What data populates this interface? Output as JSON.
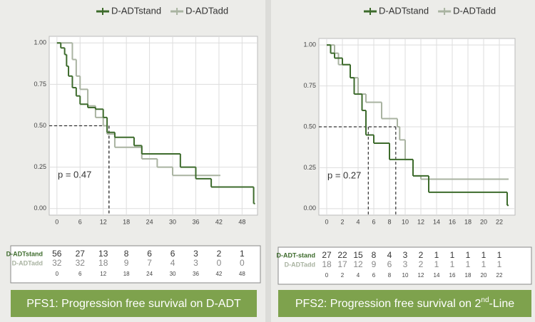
{
  "chart_data": [
    {
      "type": "step",
      "series": [
        {
          "name": "D-ADTstand",
          "color": "#3d6b2c",
          "x": [
            0,
            1,
            2,
            2.5,
            3,
            4,
            5,
            6,
            8,
            10,
            12,
            13,
            15,
            20,
            22,
            32,
            36,
            40,
            51
          ],
          "values": [
            1.0,
            0.97,
            0.93,
            0.86,
            0.8,
            0.73,
            0.68,
            0.63,
            0.61,
            0.6,
            0.55,
            0.46,
            0.43,
            0.38,
            0.33,
            0.25,
            0.18,
            0.13,
            0.03
          ]
        },
        {
          "name": "D-ADTadd",
          "color": "#a9b3a1",
          "x": [
            0,
            4,
            5,
            6,
            8,
            10,
            12,
            13,
            15,
            22,
            26,
            30,
            42
          ],
          "values": [
            1.0,
            0.9,
            0.8,
            0.72,
            0.62,
            0.55,
            0.5,
            0.45,
            0.37,
            0.3,
            0.25,
            0.2,
            0.2
          ]
        }
      ],
      "xlim": [
        -2,
        52
      ],
      "ylim": [
        -0.04,
        1.04
      ],
      "xticks": [
        0,
        6,
        12,
        18,
        24,
        30,
        36,
        42,
        48
      ],
      "yticks": [
        {
          "value": 0,
          "label": "0.00"
        },
        {
          "value": 0.25,
          "label": "0.25"
        },
        {
          "value": 0.5,
          "label": "0.50"
        },
        {
          "value": 0.75,
          "label": "0.75"
        },
        {
          "value": 1,
          "label": "1.00"
        }
      ],
      "grid": true,
      "median_line": {
        "y": 0.5,
        "x": [
          13.5,
          13.5
        ]
      },
      "annotation": "p = 0.47",
      "risk_table": {
        "x": [
          "0",
          "6",
          "12",
          "18",
          "24",
          "30",
          "36",
          "42",
          "48"
        ],
        "rows": [
          {
            "name": "D-ADTstand",
            "values": [
              "56",
              "27",
              "13",
              "8",
              "6",
              "6",
              "3",
              "2",
              "1"
            ]
          },
          {
            "name": "D-ADTadd",
            "values": [
              "32",
              "32",
              "18",
              "9",
              "7",
              "4",
              "3",
              "0",
              "0"
            ]
          }
        ]
      },
      "footer": [
        "PFS1: Progression free survival on D-ADT"
      ]
    },
    {
      "type": "step",
      "series": [
        {
          "name": "D-ADTstand",
          "color": "#3d6b2c",
          "x": [
            0,
            0.5,
            1,
            2,
            3,
            3.5,
            4.5,
            5,
            6,
            8,
            11,
            13,
            23
          ],
          "values": [
            1.0,
            0.95,
            0.92,
            0.88,
            0.8,
            0.7,
            0.6,
            0.45,
            0.4,
            0.3,
            0.2,
            0.1,
            0.02
          ]
        },
        {
          "name": "D-ADTadd",
          "color": "#a9b3a1",
          "x": [
            0,
            1,
            1.5,
            3,
            4,
            5,
            6,
            7,
            9,
            9.3,
            10,
            11,
            12,
            23
          ],
          "values": [
            1.0,
            0.95,
            0.88,
            0.8,
            0.7,
            0.65,
            0.65,
            0.55,
            0.5,
            0.42,
            0.3,
            0.2,
            0.18,
            0.18
          ]
        }
      ],
      "xlim": [
        -1,
        24
      ],
      "ylim": [
        -0.04,
        1.04
      ],
      "xticks": [
        0,
        2,
        4,
        6,
        8,
        10,
        12,
        14,
        16,
        18,
        20,
        22
      ],
      "yticks": [
        {
          "value": 0,
          "label": "0.00"
        },
        {
          "value": 0.25,
          "label": "0.25"
        },
        {
          "value": 0.5,
          "label": "0.50"
        },
        {
          "value": 0.75,
          "label": "0.75"
        },
        {
          "value": 1,
          "label": "1.00"
        }
      ],
      "grid": true,
      "median_line": {
        "y": 0.5,
        "x": [
          5.3,
          8.8
        ]
      },
      "annotation": "p = 0.27",
      "risk_table": {
        "x": [
          "0",
          "2",
          "4",
          "6",
          "8",
          "10",
          "12",
          "14",
          "16",
          "18",
          "20",
          "22"
        ],
        "rows": [
          {
            "name": "D-ADT-stand",
            "values": [
              "27",
              "22",
              "15",
              "8",
              "4",
              "3",
              "2",
              "1",
              "1",
              "1",
              "1",
              "1"
            ]
          },
          {
            "name": "D-ADTadd",
            "values": [
              "18",
              "17",
              "12",
              "9",
              "6",
              "3",
              "2",
              "1",
              "1",
              "1",
              "1",
              "1"
            ]
          }
        ]
      },
      "footer": [
        "PFS2: Progression free survival on 2",
        "nd",
        "-Line"
      ]
    }
  ]
}
